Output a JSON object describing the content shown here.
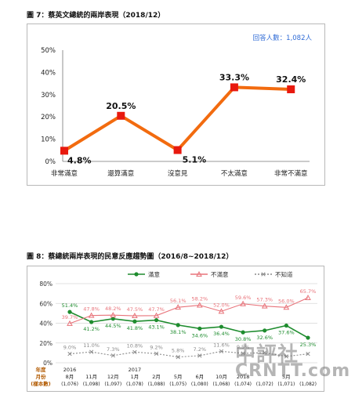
{
  "figure1": {
    "title": "圖 7：蔡英文總統的兩岸表現（2018/12）",
    "respondents": "回答人數：1,082人",
    "chart_data": {
      "type": "line",
      "categories": [
        "非常滿意",
        "還算滿意",
        "沒意見",
        "不太滿意",
        "非常不滿意"
      ],
      "values": [
        4.8,
        20.5,
        5.1,
        33.3,
        32.4
      ],
      "value_labels": [
        "4.8%",
        "20.5%",
        "5.1%",
        "33.3%",
        "32.4%"
      ],
      "yticks": [
        "0%",
        "10%",
        "20%",
        "30%",
        "40%",
        "50%"
      ],
      "ylim": [
        0,
        50
      ],
      "grid": false,
      "series_color": "#f26b0f",
      "marker_color": "#e8190e"
    }
  },
  "figure2": {
    "title": "圖 8：蔡總統兩岸表現的民意反應趨勢圖（2016/8~2018/12）",
    "chart_data": {
      "type": "line",
      "x_groups": [
        {
          "month": "8月",
          "n": "(1,076)",
          "year": "2016"
        },
        {
          "month": "11月",
          "n": "(1,098)",
          "year": ""
        },
        {
          "month": "12月",
          "n": "(1,097)",
          "year": ""
        },
        {
          "month": "1月",
          "n": "(1,078)",
          "year": "2017"
        },
        {
          "month": "2月",
          "n": "(1,088)",
          "year": ""
        },
        {
          "month": "5月",
          "n": "(1,075)",
          "year": ""
        },
        {
          "month": "6月",
          "n": "(1,080)",
          "year": ""
        },
        {
          "month": "10月",
          "n": "(1,068)",
          "year": ""
        },
        {
          "month": "2018",
          "n": "(1,074)",
          "year": ""
        },
        {
          "month": "",
          "n": "(1,072)",
          "year": ""
        },
        {
          "month": "5月",
          "n": "(1,071)",
          "year": ""
        },
        {
          "month": "",
          "n": "(1,082)",
          "year": ""
        }
      ],
      "row_labels": [
        "年度",
        "月份",
        "(樣本數)"
      ],
      "series": [
        {
          "name": "滿意",
          "color": "#1e8c2e",
          "marker": "circle",
          "values": [
            51.4,
            41.2,
            44.5,
            41.8,
            43.1,
            38.1,
            34.6,
            36.4,
            30.8,
            32.6,
            37.6,
            25.3
          ],
          "labels": [
            "51.4%",
            "41.2%",
            "44.5%",
            "41.8%",
            "43.1%",
            "38.1%",
            "34.6%",
            "36.4%",
            "30.8%",
            "32.6%",
            "37.6%",
            "25.3%"
          ]
        },
        {
          "name": "不滿意",
          "color": "#e8737a",
          "marker": "triangle",
          "values": [
            39.7,
            47.8,
            48.2,
            47.5,
            47.7,
            56.1,
            58.2,
            52.0,
            59.6,
            57.3,
            56.0,
            65.7
          ],
          "labels": [
            "39.7%",
            "47.8%",
            "48.2%",
            "47.5%",
            "47.7%",
            "56.1%",
            "58.2%",
            "52.0%",
            "59.6%",
            "57.3%",
            "56.0%",
            "65.7%"
          ]
        },
        {
          "name": "不知道",
          "color": "#8a8a8a",
          "marker": "x",
          "values": [
            9.0,
            11.0,
            7.3,
            10.8,
            9.2,
            5.8,
            7.2,
            11.6,
            9.5,
            10.2,
            6.4,
            9.0
          ],
          "labels": [
            "9.0%",
            "11.0%",
            "7.3%",
            "10.8%",
            "9.2%",
            "5.8%",
            "7.2%",
            "11.6%",
            "9.5%",
            "",
            "",
            ""
          ]
        }
      ],
      "yticks": [
        "0%",
        "20%",
        "40%",
        "60%",
        "80%"
      ],
      "ylim": [
        0,
        80
      ],
      "grid": true,
      "legend_position": "top"
    }
  },
  "watermark": {
    "line1": "中評社",
    "line2": "CRNTT.com"
  }
}
